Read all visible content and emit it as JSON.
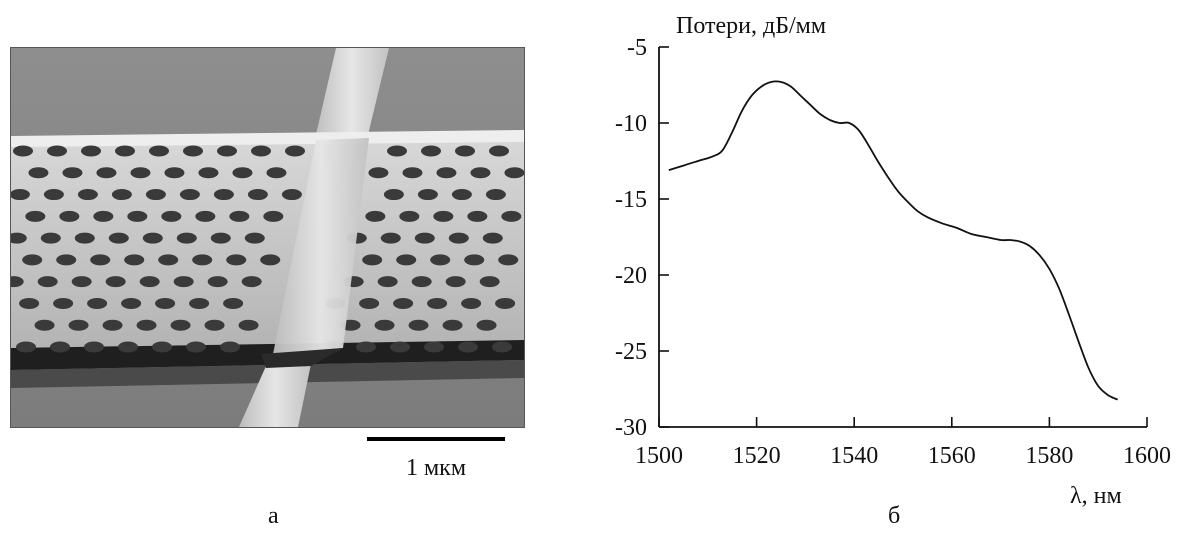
{
  "panel_a": {
    "label": "а",
    "scalebar_label": "1 мкм",
    "image_desc_icon": "sem-photonic-crystal-waveguide"
  },
  "panel_b": {
    "label": "б"
  },
  "chart_data": {
    "type": "line",
    "ylabel": "Потери, дБ/мм",
    "xlabel": "λ, нм",
    "xlim": [
      1500,
      1600
    ],
    "ylim": [
      -30,
      -5
    ],
    "xticks": [
      1500,
      1520,
      1540,
      1560,
      1580,
      1600
    ],
    "yticks": [
      -5,
      -10,
      -15,
      -20,
      -25,
      -30
    ],
    "grid": false,
    "series": [
      {
        "x": [
          1502,
          1505,
          1508,
          1511,
          1513,
          1515,
          1517,
          1519,
          1521,
          1523,
          1525,
          1527,
          1529,
          1531,
          1533,
          1535,
          1537,
          1539,
          1541,
          1543,
          1545,
          1547,
          1549,
          1551,
          1553,
          1555,
          1558,
          1561,
          1564,
          1567,
          1570,
          1572,
          1574,
          1576,
          1578,
          1580,
          1582,
          1584,
          1586,
          1588,
          1590,
          1592,
          1594
        ],
        "y": [
          -13.1,
          -12.8,
          -12.5,
          -12.2,
          -11.8,
          -10.6,
          -9.2,
          -8.2,
          -7.6,
          -7.3,
          -7.3,
          -7.6,
          -8.2,
          -8.8,
          -9.4,
          -9.8,
          -10.0,
          -10.0,
          -10.5,
          -11.5,
          -12.6,
          -13.6,
          -14.5,
          -15.2,
          -15.8,
          -16.2,
          -16.6,
          -16.9,
          -17.3,
          -17.5,
          -17.7,
          -17.7,
          -17.8,
          -18.1,
          -18.7,
          -19.6,
          -20.9,
          -22.6,
          -24.4,
          -26.1,
          -27.3,
          -27.9,
          -28.2
        ]
      }
    ]
  }
}
